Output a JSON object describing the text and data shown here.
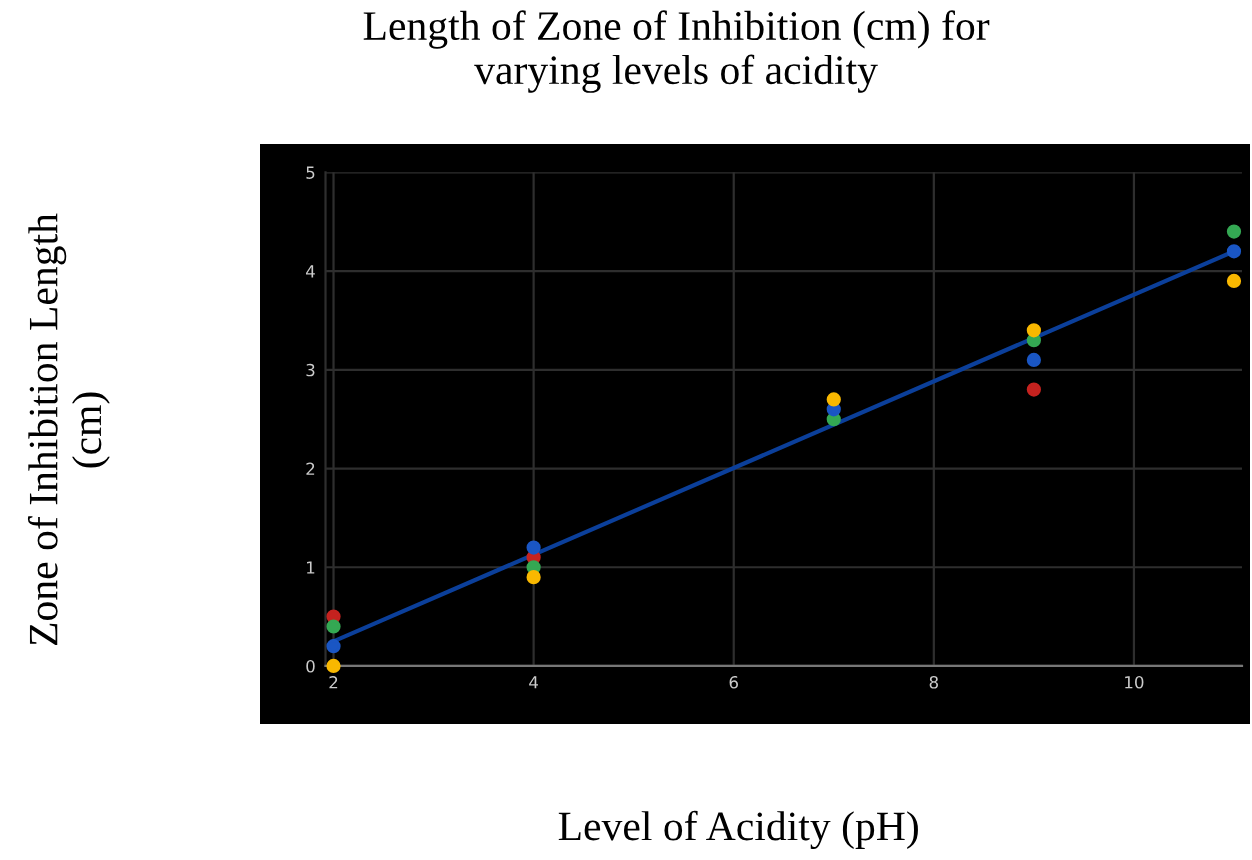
{
  "chart_data": {
    "type": "scatter",
    "title": "Length of Zone of Inhibition (cm) for\nvarying levels of acidity",
    "xlabel": "Level of Acidity (pH)",
    "ylabel": "Zone of Inhibition Length\n(cm)",
    "x": [
      2,
      4,
      7,
      9,
      11
    ],
    "series": [
      {
        "color": "#c5221f",
        "values": [
          0.5,
          1.1,
          null,
          2.8,
          null
        ]
      },
      {
        "color": "#34a853",
        "values": [
          0.4,
          1.0,
          2.5,
          3.3,
          4.4
        ]
      },
      {
        "color": "#1a56c4",
        "values": [
          0.2,
          1.2,
          2.6,
          3.1,
          4.2
        ]
      },
      {
        "color": "#f9b800",
        "values": [
          0.0,
          0.9,
          2.7,
          3.4,
          3.9
        ]
      },
      {
        "type": "line",
        "marker": "none",
        "color": "#0b3f9a",
        "x": [
          2,
          11
        ],
        "values": [
          0.25,
          4.2
        ]
      }
    ],
    "xlim": [
      1.92,
      11.08
    ],
    "ylim": [
      0,
      5
    ],
    "xticks": [
      2,
      4,
      6,
      8,
      10
    ],
    "yticks": [
      0,
      1,
      2,
      3,
      4,
      5
    ],
    "grid": true,
    "marker": "circle"
  }
}
